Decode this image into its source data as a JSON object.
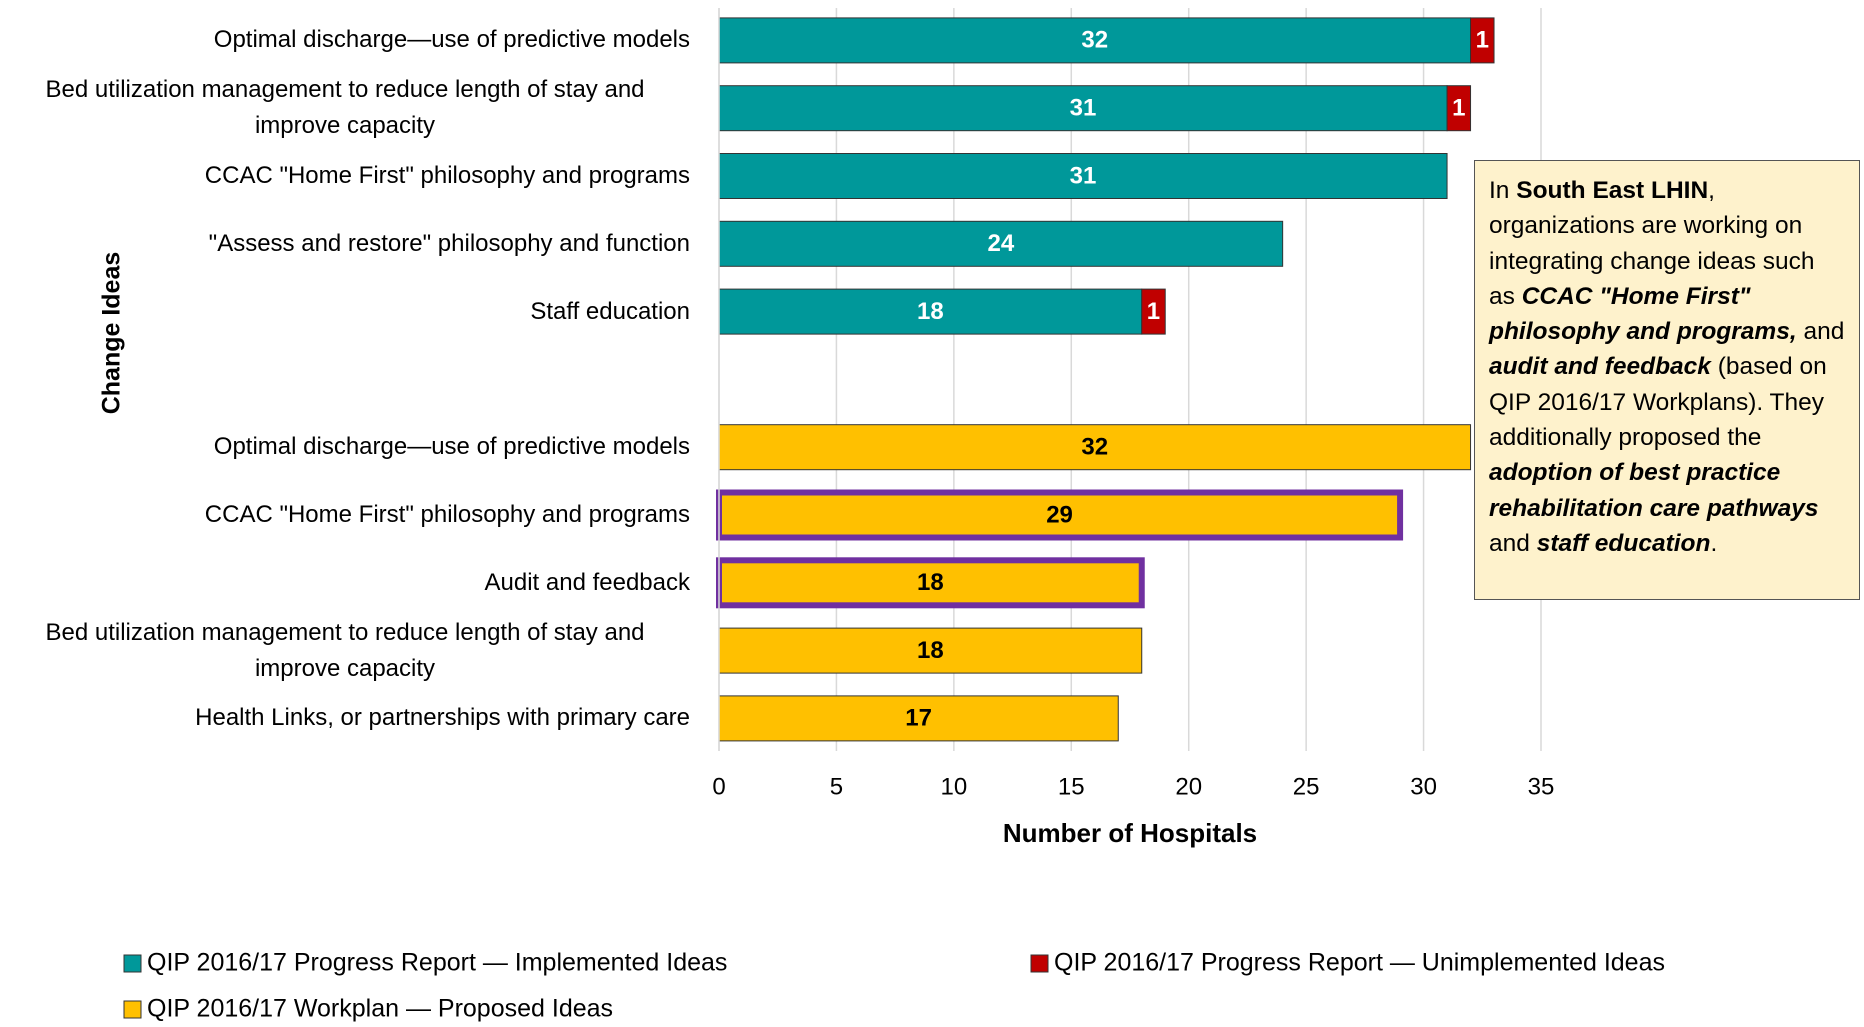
{
  "chart_data": {
    "type": "stacked-barh",
    "categories": [
      "Optimal discharge—use of predictive models",
      "Bed utilization management to reduce length of stay and improve capacity",
      "CCAC \"Home First\" philosophy and programs",
      "\"Assess and restore\" philosophy and function",
      "Staff education",
      null,
      "Optimal discharge—use of predictive models",
      "CCAC \"Home First\" philosophy and programs",
      "Audit and feedback",
      "Bed utilization management to reduce length of stay and improve capacity",
      "Health Links, or partnerships with primary care"
    ],
    "series": [
      {
        "name": "QIP 2016/17 Progress Report — Implemented Ideas",
        "color": "#00989a",
        "label_color": "#ffffff",
        "values": [
          32,
          31,
          31,
          24,
          18,
          null,
          null,
          null,
          null,
          null,
          null
        ]
      },
      {
        "name": "QIP 2016/17 Progress Report — Unimplemented Ideas",
        "color": "#c00000",
        "label_color": "#ffffff",
        "values": [
          1,
          1,
          null,
          null,
          1,
          null,
          null,
          null,
          null,
          null,
          null
        ]
      },
      {
        "name": "QIP 2016/17 Workplan — Proposed Ideas",
        "color": "#ffc000",
        "label_color": "#000000",
        "values": [
          null,
          null,
          null,
          null,
          null,
          null,
          32,
          29,
          18,
          18,
          17
        ]
      }
    ],
    "highlighted": [
      7,
      8
    ],
    "highlight_color": "#7030a0",
    "xlim": [
      0,
      35
    ],
    "xticks": [
      0,
      5,
      10,
      15,
      20,
      25,
      30,
      35
    ],
    "grid": true,
    "xlabel": "Number of Hospitals",
    "ylabel": "Change Ideas",
    "annotation": [
      {
        "text": "In "
      },
      {
        "text": "South East LHIN",
        "bold": true
      },
      {
        "text": ", organizations are working on integrating change ideas such as "
      },
      {
        "text": "CCAC \"Home First\" philosophy and programs,",
        "bold": true,
        "italic": true
      },
      {
        "text": " and "
      },
      {
        "text": "audit and feedback",
        "bold": true,
        "italic": true
      },
      {
        "text": " (based on QIP 2016/17 Workplans). They additionally proposed the "
      },
      {
        "text": "adoption of best practice rehabilitation care pathways",
        "bold": true,
        "italic": true
      },
      {
        "text": " and "
      },
      {
        "text": "staff education",
        "bold": true,
        "italic": true
      },
      {
        "text": "."
      }
    ]
  }
}
